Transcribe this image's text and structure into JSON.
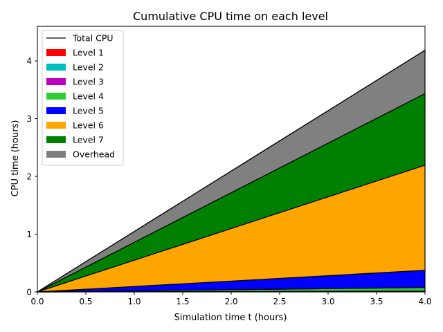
{
  "chart_data": {
    "type": "area",
    "title": "Cumulative CPU time on each level",
    "xlabel": "Simulation time t (hours)",
    "ylabel": "CPU time (hours)",
    "xlim": [
      0,
      4
    ],
    "ylim": [
      0,
      4.6
    ],
    "xticks": [
      0.0,
      0.5,
      1.0,
      1.5,
      2.0,
      2.5,
      3.0,
      3.5,
      4.0
    ],
    "xtick_labels": [
      "0.0",
      "0.5",
      "1.0",
      "1.5",
      "2.0",
      "2.5",
      "3.0",
      "3.5",
      "4.0"
    ],
    "yticks": [
      0,
      1,
      2,
      3,
      4
    ],
    "ytick_labels": [
      "0",
      "1",
      "2",
      "3",
      "4"
    ],
    "grid": false,
    "legend_position": "top-left",
    "x": [
      0,
      4
    ],
    "stacked": true,
    "series": [
      {
        "name": "Level 1",
        "color": "#ff0000",
        "values": [
          0,
          0.005
        ]
      },
      {
        "name": "Level 2",
        "color": "#00bfbf",
        "values": [
          0,
          0.005
        ]
      },
      {
        "name": "Level 3",
        "color": "#bf00bf",
        "values": [
          0,
          0.005
        ]
      },
      {
        "name": "Level 4",
        "color": "#32cd32",
        "values": [
          0,
          0.06
        ]
      },
      {
        "name": "Level 5",
        "color": "#0000ff",
        "values": [
          0,
          0.3
        ]
      },
      {
        "name": "Level 6",
        "color": "#ffa500",
        "values": [
          0,
          1.82
        ]
      },
      {
        "name": "Level 7",
        "color": "#008000",
        "values": [
          0,
          1.24
        ]
      },
      {
        "name": "Overhead",
        "color": "#808080",
        "values": [
          0,
          0.75
        ]
      }
    ],
    "total_line": {
      "name": "Total CPU",
      "color": "#000000",
      "values": [
        0,
        4.185
      ]
    }
  }
}
